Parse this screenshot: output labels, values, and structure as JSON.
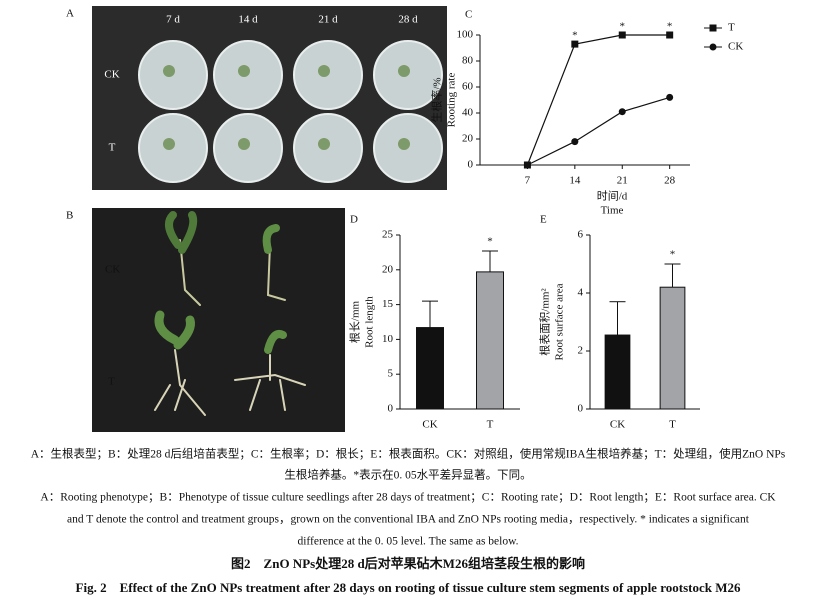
{
  "panel_a": {
    "letter": "A",
    "columns": [
      "7 d",
      "14 d",
      "21 d",
      "28 d"
    ],
    "rows": [
      "CK",
      "T"
    ]
  },
  "panel_b": {
    "letter": "B",
    "rows": [
      "CK",
      "T"
    ]
  },
  "chart_data": [
    {
      "type": "line",
      "letter": "C",
      "ylabel": "生根率/%",
      "ylabel_en": "Rooting rate",
      "xlabel": "时间/d",
      "xlabel_en": "Time",
      "x": [
        7,
        14,
        21,
        28
      ],
      "xlim": [
        0,
        31
      ],
      "xticks": [
        7,
        14,
        21,
        28
      ],
      "ylim": [
        0,
        100
      ],
      "yticks": [
        0,
        20,
        40,
        60,
        80,
        100
      ],
      "series": [
        {
          "name": "T",
          "color": "#111111",
          "marker": "square",
          "values": [
            0,
            93,
            100,
            100
          ]
        },
        {
          "name": "CK",
          "color": "#111111",
          "marker": "circle",
          "values": [
            0,
            18,
            41,
            52
          ]
        }
      ],
      "annotations": [
        {
          "x": 14,
          "text": "*"
        },
        {
          "x": 21,
          "text": "*"
        },
        {
          "x": 28,
          "text": "*"
        }
      ]
    },
    {
      "type": "bar",
      "letter": "D",
      "ylabel": "根长/mm",
      "ylabel_en": "Root  length",
      "categories": [
        "CK",
        "T"
      ],
      "values": [
        11.7,
        19.7
      ],
      "errors": [
        3.8,
        3.0
      ],
      "colors": [
        "#111111",
        "#a2a4a8"
      ],
      "ylim": [
        0,
        25
      ],
      "yticks": [
        0,
        5,
        10,
        15,
        20,
        25
      ],
      "annotations": [
        {
          "x": "T",
          "text": "*"
        }
      ]
    },
    {
      "type": "bar",
      "letter": "E",
      "ylabel": "根表面积/mm²",
      "ylabel_en": "Root surface area",
      "categories": [
        "CK",
        "T"
      ],
      "values": [
        2.55,
        4.2
      ],
      "errors": [
        1.15,
        0.8
      ],
      "colors": [
        "#111111",
        "#a2a4a8"
      ],
      "ylim": [
        0,
        6
      ],
      "yticks": [
        0,
        2,
        4,
        6
      ],
      "annotations": [
        {
          "x": "T",
          "text": "*"
        }
      ]
    }
  ],
  "caption": {
    "cn": [
      "A：生根表型；B：处理28 d后组培苗表型；C：生根率；D：根长；E：根表面积。CK：对照组，使用常规IBA生根培养基；T：处理组，使用ZnO NPs",
      "生根培养基。*表示在0. 05水平差异显著。下同。"
    ],
    "en": [
      "A：Rooting phenotype；B：Phenotype of tissue culture seedlings after 28 days of treatment；C：Rooting rate；D：Root length；E：Root surface area. CK",
      "and T denote the control and treatment groups，grown on the conventional IBA and ZnO NPs rooting media，respectively. * indicates a significant",
      "difference at the 0. 05 level. The same as below."
    ],
    "title_cn": "图2　ZnO NPs处理28 d后对苹果砧木M26组培茎段生根的影响",
    "title_en": "Fig. 2　Effect of the ZnO NPs treatment after 28 days on rooting of tissue culture stem segments of apple rootstock M26"
  }
}
